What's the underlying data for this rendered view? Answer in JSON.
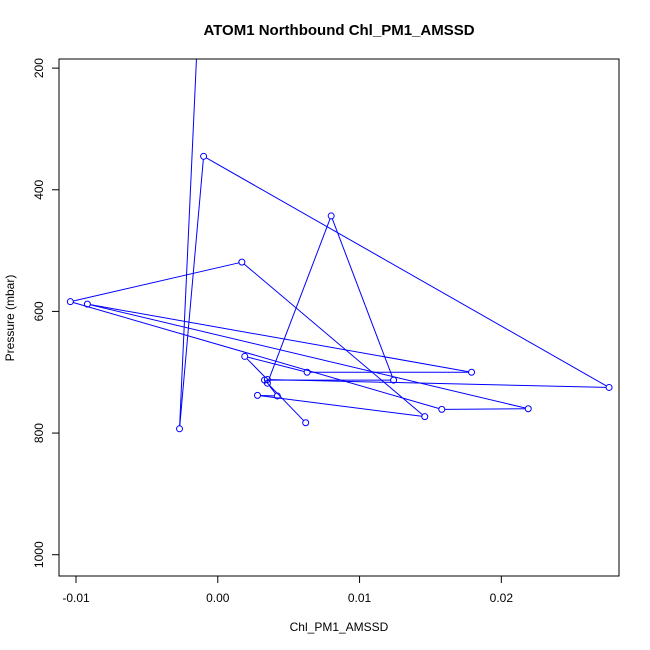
{
  "chart_data": {
    "type": "line",
    "title": "ATOM1 Northbound Chl_PM1_AMSSD",
    "xlabel": "Chl_PM1_AMSSD",
    "ylabel": "Pressure (mbar)",
    "xlim": [
      -0.0112,
      0.0283
    ],
    "ylim": [
      1035,
      185
    ],
    "y_reversed": true,
    "x_ticks": [
      -0.01,
      0.0,
      0.01,
      0.02
    ],
    "x_tick_labels": [
      "-0.01",
      "0.00",
      "0.01",
      "0.02"
    ],
    "y_ticks": [
      200,
      400,
      600,
      800,
      1000
    ],
    "y_tick_labels": [
      "200",
      "400",
      "600",
      "800",
      "1000"
    ],
    "grid": false,
    "series": [
      {
        "color": "#0000ff",
        "marker": "open-circle",
        "points": [
          {
            "x": 0.0062,
            "y": 783
          },
          {
            "x": 0.0033,
            "y": 713
          },
          {
            "x": 0.0124,
            "y": 713
          },
          {
            "x": 0.008,
            "y": 443
          },
          {
            "x": 0.0035,
            "y": 718
          },
          {
            "x": 0.0042,
            "y": 739
          },
          {
            "x": 0.0028,
            "y": 738
          },
          {
            "x": 0.0146,
            "y": 773
          },
          {
            "x": 0.0017,
            "y": 519
          },
          {
            "x": -0.0104,
            "y": 584
          },
          {
            "x": 0.0158,
            "y": 761
          },
          {
            "x": 0.0219,
            "y": 760
          },
          {
            "x": -0.0092,
            "y": 588
          },
          {
            "x": 0.0179,
            "y": 700
          },
          {
            "x": 0.0063,
            "y": 700
          },
          {
            "x": 0.0019,
            "y": 674
          },
          {
            "x": 0.0035,
            "y": 712
          },
          {
            "x": 0.0276,
            "y": 725
          },
          {
            "x": -0.001,
            "y": 345
          },
          {
            "x": -0.0027,
            "y": 793
          },
          {
            "x": -0.0015,
            "y": 183
          }
        ]
      }
    ]
  }
}
